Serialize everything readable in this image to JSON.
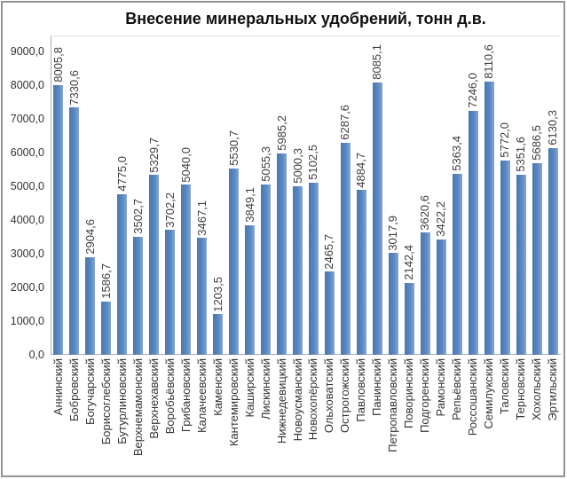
{
  "chart_data": {
    "type": "bar",
    "title": "Внесение минеральных удобрений, тонн д.в.",
    "xlabel": "",
    "ylabel": "",
    "ylim": [
      0,
      9000
    ],
    "ytick_step": 1000,
    "ytick_labels": [
      "0,0",
      "1000,0",
      "2000,0",
      "3000,0",
      "4000,0",
      "5000,0",
      "6000,0",
      "7000,0",
      "8000,0",
      "9000,0"
    ],
    "grid": false,
    "legend": "none",
    "bar_color": "#4f81bd",
    "decimal_separator": ",",
    "categories": [
      "Аннинский",
      "Бобровский",
      "Богучарский",
      "Борисоглебский",
      "Бутурлиновский",
      "Верхнемамонский",
      "Верхнехавский",
      "Воробьёвский",
      "Грибановский",
      "Калачеевский",
      "Каменский",
      "Кантемировский",
      "Каширский",
      "Лискинский",
      "Нижнедевицкий",
      "Новоусманский",
      "Новохопёрский",
      "Ольховатский",
      "Острогожский",
      "Павловский",
      "Панинский",
      "Петропавловский",
      "Поворинский",
      "Подгоренский",
      "Рамонский",
      "Репьёвский",
      "Россошанский",
      "Семилукский",
      "Таловский",
      "Терновский",
      "Хохольский",
      "Эртильский"
    ],
    "values": [
      8005.8,
      7330.6,
      2904.6,
      1586.7,
      4775.0,
      3502.7,
      5329.7,
      3702.2,
      5040.0,
      3467.1,
      1203.5,
      5530.7,
      3849.1,
      5055.3,
      5985.2,
      5000.3,
      5102.5,
      2465.7,
      6287.6,
      4884.7,
      8085.1,
      3017.9,
      2142.4,
      3620.6,
      3422.2,
      5363.4,
      7246.0,
      8110.6,
      5772.0,
      5351.6,
      5686.5,
      6130.3
    ],
    "value_labels": [
      "8005,8",
      "7330,6",
      "2904,6",
      "1586,7",
      "4775,0",
      "3502,7",
      "5329,7",
      "3702,2",
      "5040,0",
      "3467,1",
      "1203,5",
      "5530,7",
      "3849,1",
      "5055,3",
      "5985,2",
      "5000,3",
      "5102,5",
      "2465,7",
      "6287,6",
      "4884,7",
      "8085,1",
      "3017,9",
      "2142,4",
      "3620,6",
      "3422,2",
      "5363,4",
      "7246,0",
      "8110,6",
      "5772,0",
      "5351,6",
      "5686,5",
      "6130,3"
    ]
  }
}
